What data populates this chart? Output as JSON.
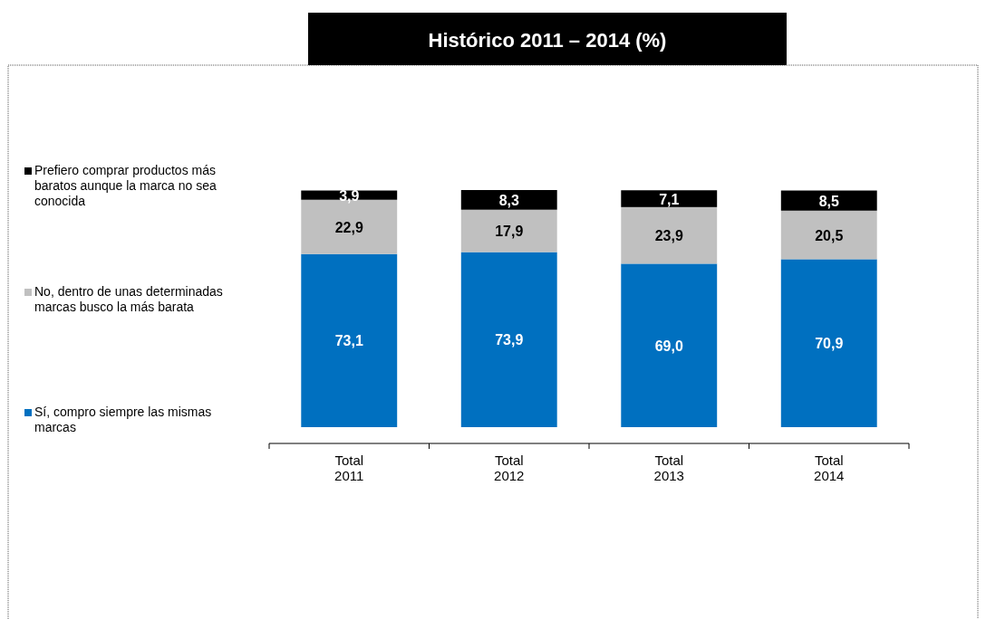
{
  "chart_data": {
    "type": "bar",
    "title": "Histórico 2011 – 2014  (%)",
    "categories": [
      "Total\n2011",
      "Total\n2012",
      "Total\n2013",
      "Total\n2014"
    ],
    "stacked": true,
    "legend": "left",
    "series": [
      {
        "name": "Sí, compro siempre las mismas marcas",
        "color": "#0070c0",
        "values": [
          73.1,
          73.9,
          69.0,
          70.9
        ],
        "value_labels": [
          "73,1",
          "73,9",
          "69,0",
          "70,9"
        ]
      },
      {
        "name": "No, dentro de unas determinadas marcas busco la más barata",
        "color": "#c0c0c0",
        "values": [
          22.9,
          17.9,
          23.9,
          20.5
        ],
        "value_labels": [
          "22,9",
          "17,9",
          "23,9",
          "20,5"
        ]
      },
      {
        "name": "Prefiero comprar productos más baratos aunque la marca no sea conocida",
        "color": "#000000",
        "values": [
          3.9,
          8.3,
          7.1,
          8.5
        ],
        "value_labels": [
          "3,9",
          "8,3",
          "7,1",
          "8,5"
        ]
      }
    ]
  }
}
